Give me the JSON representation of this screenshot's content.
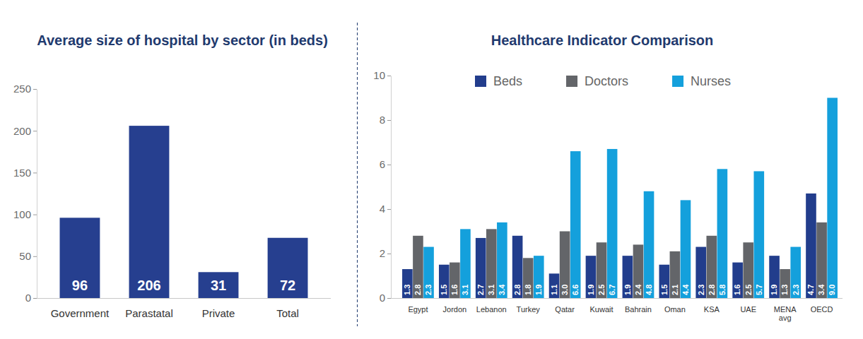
{
  "chart_data": [
    {
      "type": "bar",
      "title": "Average size of hospital by sector (in beds)",
      "categories": [
        "Government",
        "Parastatal",
        "Private",
        "Total"
      ],
      "values": [
        96,
        206,
        31,
        72
      ],
      "color": "#263f8f",
      "ylim": [
        0,
        250
      ],
      "yticks": [
        0,
        50,
        100,
        150,
        200,
        250
      ],
      "grid": false,
      "data_labels": true
    },
    {
      "type": "bar",
      "title": "Healthcare Indicator Comparison",
      "categories": [
        "Egypt",
        "Jordon",
        "Lebanon",
        "Turkey",
        "Qatar",
        "Kuwait",
        "Bahrain",
        "Oman",
        "KSA",
        "UAE",
        "MENA avg",
        "OECD"
      ],
      "series": [
        {
          "name": "Beds",
          "color": "#223d8c",
          "values": [
            1.3,
            1.5,
            2.7,
            2.8,
            1.1,
            1.9,
            1.9,
            1.5,
            2.3,
            1.6,
            1.9,
            4.7
          ],
          "value_labels": [
            "1.3",
            "1.5",
            "2.7",
            "2.8",
            "1.1",
            "1.9",
            "1.9",
            "1.5",
            "2.3",
            "1.6",
            "1.9",
            "4.7"
          ]
        },
        {
          "name": "Doctors",
          "color": "#636569",
          "values": [
            2.8,
            1.6,
            3.1,
            1.8,
            3.0,
            2.5,
            2.4,
            2.1,
            2.8,
            2.5,
            1.3,
            3.4
          ],
          "value_labels": [
            "2.8",
            "1.6",
            "3.1",
            "1.8",
            "3.0",
            "2.5",
            "2.4",
            "2.1",
            "2.8",
            "2.5",
            "1.3",
            "3.4"
          ]
        },
        {
          "name": "Nurses",
          "color": "#14a0dc",
          "values": [
            2.3,
            3.1,
            3.4,
            1.9,
            6.6,
            6.7,
            4.8,
            4.4,
            5.8,
            5.7,
            2.3,
            9.0
          ],
          "value_labels": [
            "2.3",
            "3.1",
            "3.4",
            "1.9",
            "6.6",
            "6.7",
            "4.8",
            "4.4",
            "5.8",
            "5.7",
            "2.3",
            "9.0"
          ]
        }
      ],
      "ylim": [
        0,
        10
      ],
      "yticks": [
        0,
        2,
        4,
        6,
        8,
        10
      ],
      "grid": false,
      "legend": "top",
      "data_labels": true
    }
  ]
}
